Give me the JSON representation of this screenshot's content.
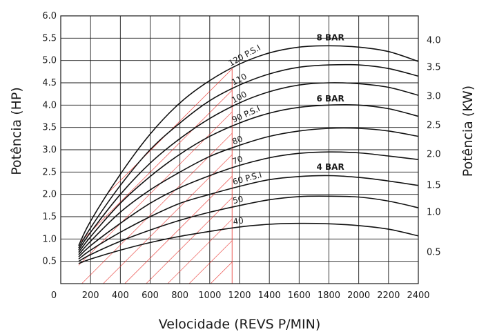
{
  "chart_data": {
    "type": "line",
    "xlabel": "Velocidade (REVS P/MIN)",
    "ylabel": "Potência (HP)",
    "y2label": "Potência (KW)",
    "xlim": [
      0,
      2400
    ],
    "ylim": [
      0,
      6.0
    ],
    "x_ticks": [
      "0",
      "200",
      "400",
      "600",
      "800",
      "1000",
      "1200",
      "1400",
      "1600",
      "1800",
      "2000",
      "2200",
      "2400"
    ],
    "y_ticks": [
      "0.5",
      "1.0",
      "1.5",
      "2.0",
      "2.5",
      "3.0",
      "3.5",
      "4.0",
      "4.5",
      "5.0",
      "5.5",
      "6.0"
    ],
    "y2_ticks": [
      {
        "label": "0.5",
        "hp": 0.7
      },
      {
        "label": "1.0",
        "hp": 1.6
      },
      {
        "label": "1.5",
        "hp": 2.2
      },
      {
        "label": "2.0",
        "hp": 2.9
      },
      {
        "label": "2.5",
        "hp": 3.55
      },
      {
        "label": "3.0",
        "hp": 4.2
      },
      {
        "label": "3.5",
        "hp": 4.85
      },
      {
        "label": "4.0",
        "hp": 5.45
      }
    ],
    "grid": true,
    "shaded_region": {
      "x_range": [
        120,
        1150
      ],
      "pattern": "red diagonal hatch"
    },
    "x": [
      120,
      200,
      400,
      600,
      800,
      1000,
      1200,
      1400,
      1600,
      1800,
      2000,
      2200,
      2400
    ],
    "series": [
      {
        "name": "40",
        "values": [
          0.45,
          0.55,
          0.75,
          0.92,
          1.06,
          1.17,
          1.27,
          1.33,
          1.35,
          1.34,
          1.3,
          1.22,
          1.07
        ]
      },
      {
        "name": "50",
        "values": [
          0.5,
          0.65,
          0.95,
          1.2,
          1.42,
          1.6,
          1.75,
          1.88,
          1.95,
          1.96,
          1.94,
          1.85,
          1.7
        ]
      },
      {
        "name": "60 P.S.I",
        "values": [
          0.55,
          0.75,
          1.15,
          1.5,
          1.8,
          2.0,
          2.18,
          2.33,
          2.4,
          2.42,
          2.38,
          2.3,
          2.2
        ]
      },
      {
        "name": "70",
        "values": [
          0.6,
          0.85,
          1.35,
          1.8,
          2.15,
          2.42,
          2.65,
          2.82,
          2.92,
          2.95,
          2.93,
          2.86,
          2.78
        ]
      },
      {
        "name": "80",
        "values": [
          0.65,
          0.95,
          1.6,
          2.1,
          2.5,
          2.85,
          3.1,
          3.3,
          3.42,
          3.48,
          3.48,
          3.42,
          3.3
        ]
      },
      {
        "name": "90 P.S.I",
        "values": [
          0.7,
          1.05,
          1.8,
          2.4,
          2.9,
          3.3,
          3.6,
          3.82,
          3.95,
          4.0,
          4.0,
          3.92,
          3.75
        ]
      },
      {
        "name": "100",
        "values": [
          0.75,
          1.15,
          2.0,
          2.7,
          3.25,
          3.7,
          4.05,
          4.3,
          4.45,
          4.5,
          4.48,
          4.4,
          4.22
        ]
      },
      {
        "name": "110",
        "values": [
          0.8,
          1.25,
          2.2,
          3.0,
          3.6,
          4.1,
          4.45,
          4.7,
          4.85,
          4.9,
          4.9,
          4.82,
          4.65
        ]
      },
      {
        "name": "120 P.S.I",
        "values": [
          0.85,
          1.4,
          2.45,
          3.35,
          4.05,
          4.55,
          4.92,
          5.17,
          5.3,
          5.33,
          5.3,
          5.2,
          4.98
        ]
      }
    ],
    "annotations": [
      {
        "text": "8 BAR",
        "x": 1800,
        "y": 5.45
      },
      {
        "text": "6 BAR",
        "x": 1800,
        "y": 4.08
      },
      {
        "text": "4 BAR",
        "x": 1800,
        "y": 2.55
      }
    ]
  }
}
